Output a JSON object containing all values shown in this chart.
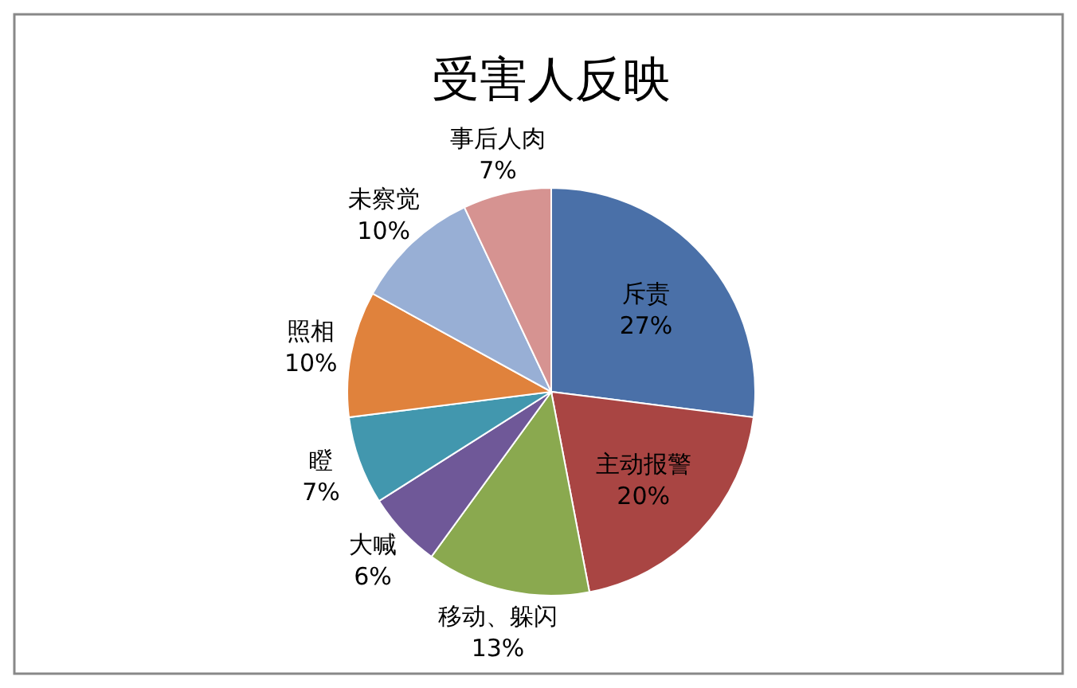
{
  "chart_data": {
    "type": "pie",
    "title": "受害人反映",
    "categories": [
      "斥责",
      "主动报警",
      "移动、躲闪",
      "大喊",
      "瞪",
      "照相",
      "未察觉",
      "事后人肉"
    ],
    "values": [
      27,
      20,
      13,
      6,
      7,
      10,
      10,
      7
    ],
    "colors": [
      "#4a70a8",
      "#a94543",
      "#8aa94f",
      "#6f5898",
      "#4297ae",
      "#e0823c",
      "#98afd5",
      "#d69391"
    ],
    "value_labels": [
      "27%",
      "20%",
      "13%",
      "6%",
      "7%",
      "10%",
      "10%",
      "7%"
    ]
  }
}
